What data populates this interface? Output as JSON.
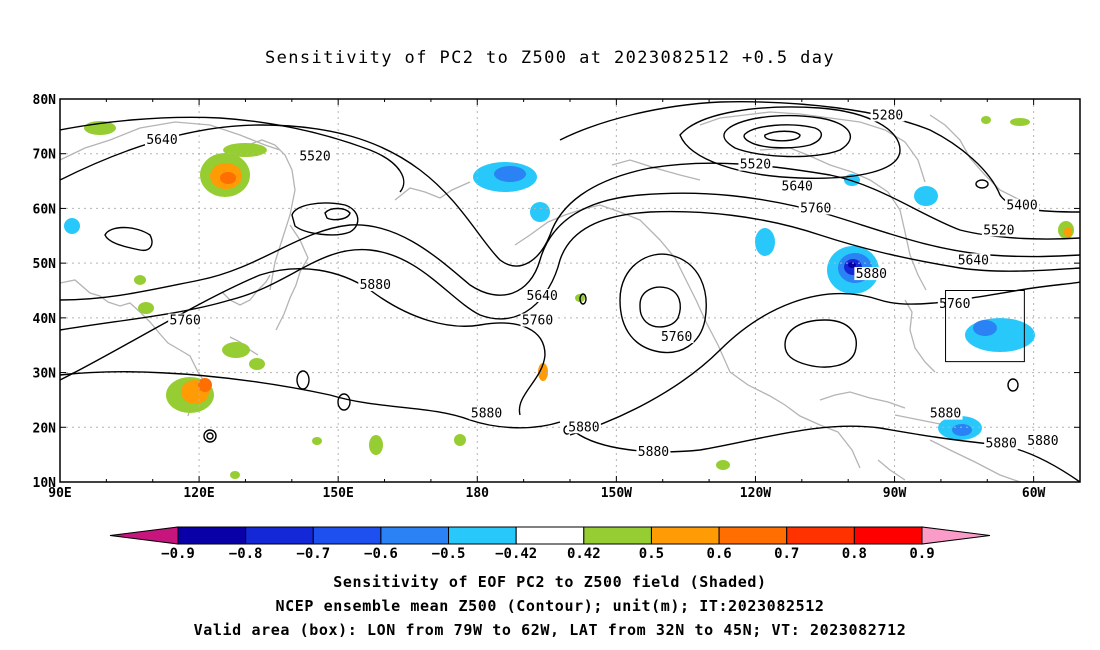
{
  "title": "Sensitivity of PC2 to Z500 at 2023082512 +0.5 day",
  "axes": {
    "lat_labels": [
      "80N",
      "70N",
      "60N",
      "50N",
      "40N",
      "30N",
      "20N",
      "10N"
    ],
    "lon_labels": [
      "90E",
      "120E",
      "150E",
      "180",
      "150W",
      "120W",
      "90W",
      "60W"
    ],
    "lon_range": [
      90,
      310
    ],
    "lat_range": [
      10,
      80
    ]
  },
  "contour_labels": [
    {
      "text": "5280",
      "lon": 268.5,
      "lat": 77
    },
    {
      "text": "5400",
      "lon": 297.5,
      "lat": 60.5
    },
    {
      "text": "5520",
      "lon": 145,
      "lat": 69.5
    },
    {
      "text": "5520",
      "lon": 240,
      "lat": 68
    },
    {
      "text": "5520",
      "lon": 292.5,
      "lat": 56
    },
    {
      "text": "5640",
      "lon": 112,
      "lat": 72.5
    },
    {
      "text": "5640",
      "lon": 249,
      "lat": 64
    },
    {
      "text": "5640",
      "lon": 287,
      "lat": 50.5
    },
    {
      "text": "5640",
      "lon": 194,
      "lat": 44
    },
    {
      "text": "5760",
      "lon": 253,
      "lat": 60
    },
    {
      "text": "5760",
      "lon": 283,
      "lat": 42.5
    },
    {
      "text": "5760",
      "lon": 117,
      "lat": 39.5
    },
    {
      "text": "5760",
      "lon": 193,
      "lat": 39.5
    },
    {
      "text": "5760",
      "lon": 223,
      "lat": 36.5
    },
    {
      "text": "5880",
      "lon": 158,
      "lat": 46
    },
    {
      "text": "5880",
      "lon": 265,
      "lat": 48
    },
    {
      "text": "5880",
      "lon": 182,
      "lat": 22.5
    },
    {
      "text": "5880",
      "lon": 203,
      "lat": 20
    },
    {
      "text": "5880",
      "lon": 218,
      "lat": 15.5
    },
    {
      "text": "5880",
      "lon": 281,
      "lat": 22.5
    },
    {
      "text": "5880",
      "lon": 293,
      "lat": 17
    },
    {
      "text": "5880",
      "lon": 302,
      "lat": 17.5
    }
  ],
  "valid_box": {
    "lon": [
      281,
      298
    ],
    "lat": [
      32,
      45
    ]
  },
  "colorbar": {
    "labels": [
      "-0.9",
      "-0.8",
      "-0.7",
      "-0.6",
      "-0.5",
      "-0.42",
      "0.42",
      "0.5",
      "0.6",
      "0.7",
      "0.8",
      "0.9"
    ],
    "colors": [
      "#0a00a8",
      "#1428d8",
      "#1e50f0",
      "#2a82f5",
      "#28c8fa",
      "#ffffff",
      "#96cd32",
      "#ff9b05",
      "#ff6e00",
      "#ff3200",
      "#ff0000"
    ],
    "under_color": "#c8147d",
    "over_color": "#fa9bc8"
  },
  "captions": [
    "Sensitivity of EOF PC2 to Z500 field (Shaded)",
    "NCEP ensemble mean Z500 (Contour); unit(m); IT:2023082512",
    "Valid area (box): LON from 79W to 62W, LAT from 32N to 45N; VT: 2023082712"
  ]
}
